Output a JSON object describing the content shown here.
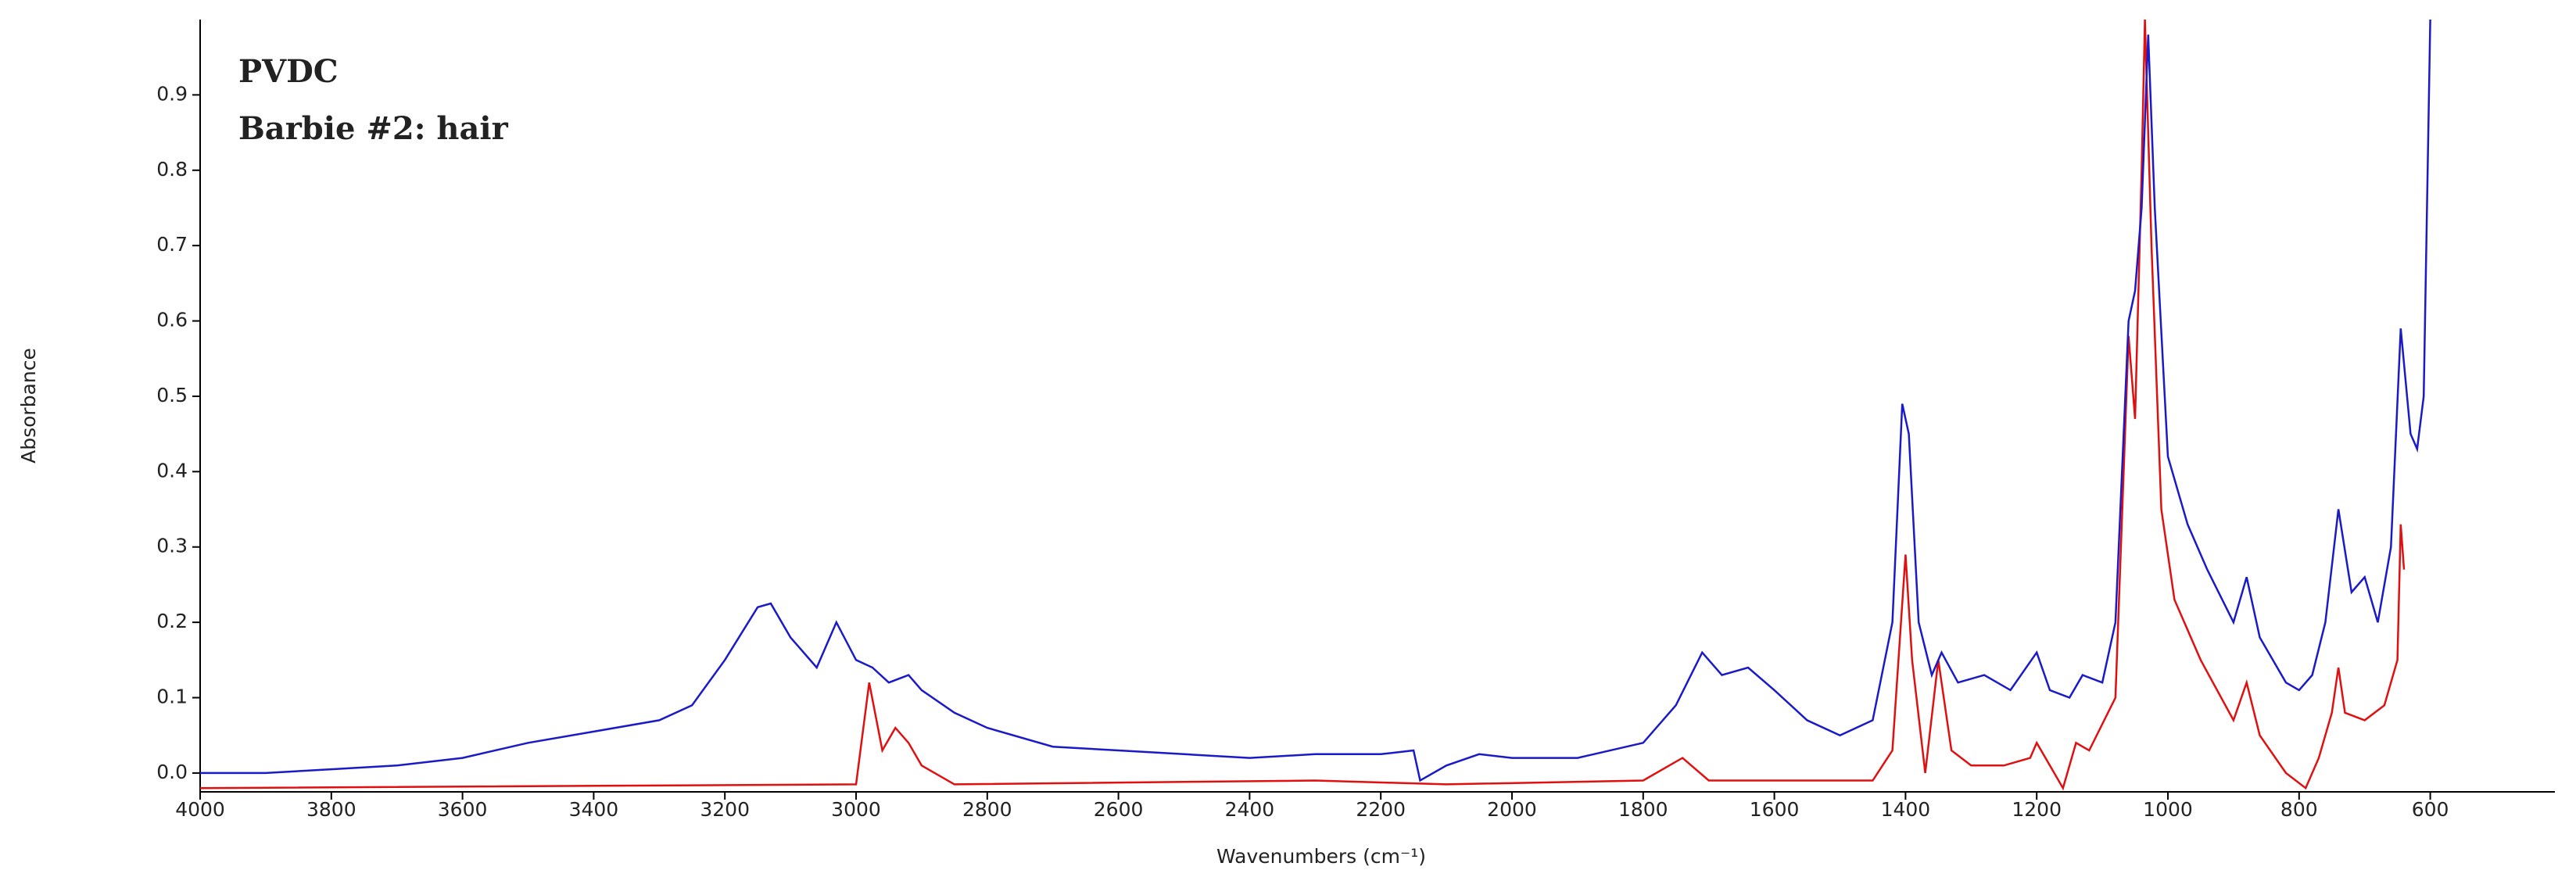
{
  "chart_data": {
    "type": "line",
    "x_label": "Wavenumbers (cm⁻¹)",
    "y_label": "Absorbance",
    "xlim": [
      4000,
      410
    ],
    "ylim": [
      -0.025,
      1.0
    ],
    "xticks": [
      4000,
      3800,
      3600,
      3400,
      3200,
      3000,
      2800,
      2600,
      2400,
      2200,
      2000,
      1800,
      1600,
      1400,
      1200,
      1000,
      800,
      600
    ],
    "yticks": [
      {
        "value": 0,
        "label": "0.0"
      },
      0.1,
      0.2,
      0.3,
      0.4,
      0.5,
      0.6,
      0.7,
      0.8,
      0.9
    ],
    "series": [
      {
        "name": "PVDC",
        "color": "#e01010",
        "x": [
          4000,
          3000,
          2980,
          2960,
          2940,
          2920,
          2900,
          2850,
          2300,
          2100,
          1800,
          1740,
          1700,
          1450,
          1420,
          1400,
          1390,
          1370,
          1350,
          1330,
          1300,
          1250,
          1210,
          1200,
          1180,
          1160,
          1140,
          1120,
          1080,
          1060,
          1050,
          1040,
          1035,
          1025,
          1010,
          990,
          950,
          900,
          880,
          860,
          820,
          790,
          770,
          750,
          740,
          730,
          700,
          670,
          650,
          645,
          640
        ],
        "values": [
          -0.02,
          -0.015,
          0.12,
          0.03,
          0.06,
          0.04,
          0.01,
          -0.015,
          -0.01,
          -0.015,
          -0.01,
          0.02,
          -0.01,
          -0.01,
          0.03,
          0.29,
          0.15,
          0.0,
          0.15,
          0.03,
          0.01,
          0.01,
          0.02,
          0.04,
          0.01,
          -0.02,
          0.04,
          0.03,
          0.1,
          0.58,
          0.47,
          0.8,
          1.0,
          0.7,
          0.35,
          0.23,
          0.15,
          0.07,
          0.12,
          0.05,
          0.0,
          -0.02,
          0.02,
          0.08,
          0.14,
          0.08,
          0.07,
          0.09,
          0.15,
          0.33,
          0.27
        ]
      },
      {
        "name": "Barbie #2: hair",
        "color": "#1a1ac8",
        "x": [
          4000,
          3900,
          3800,
          3700,
          3600,
          3500,
          3400,
          3300,
          3250,
          3200,
          3150,
          3130,
          3100,
          3060,
          3030,
          3000,
          2975,
          2950,
          2920,
          2900,
          2850,
          2800,
          2700,
          2600,
          2500,
          2400,
          2300,
          2200,
          2150,
          2140,
          2100,
          2050,
          2000,
          1900,
          1800,
          1750,
          1710,
          1680,
          1640,
          1600,
          1550,
          1500,
          1450,
          1420,
          1405,
          1395,
          1380,
          1360,
          1345,
          1320,
          1280,
          1240,
          1200,
          1180,
          1150,
          1130,
          1100,
          1080,
          1060,
          1050,
          1040,
          1030,
          1020,
          1000,
          970,
          940,
          900,
          880,
          860,
          820,
          800,
          780,
          760,
          740,
          720,
          700,
          680,
          660,
          645,
          630,
          620,
          610,
          600
        ],
        "values": [
          0.0,
          0.0,
          0.005,
          0.01,
          0.02,
          0.04,
          0.055,
          0.07,
          0.09,
          0.15,
          0.22,
          0.225,
          0.18,
          0.14,
          0.2,
          0.15,
          0.14,
          0.12,
          0.13,
          0.11,
          0.08,
          0.06,
          0.035,
          0.03,
          0.025,
          0.02,
          0.025,
          0.025,
          0.03,
          -0.01,
          0.01,
          0.025,
          0.02,
          0.02,
          0.04,
          0.09,
          0.16,
          0.13,
          0.14,
          0.11,
          0.07,
          0.05,
          0.07,
          0.2,
          0.49,
          0.45,
          0.2,
          0.13,
          0.16,
          0.12,
          0.13,
          0.11,
          0.16,
          0.11,
          0.1,
          0.13,
          0.12,
          0.2,
          0.6,
          0.64,
          0.75,
          0.98,
          0.75,
          0.42,
          0.33,
          0.27,
          0.2,
          0.26,
          0.18,
          0.12,
          0.11,
          0.13,
          0.2,
          0.35,
          0.24,
          0.26,
          0.2,
          0.3,
          0.59,
          0.45,
          0.43,
          0.5,
          1.0
        ]
      }
    ]
  }
}
